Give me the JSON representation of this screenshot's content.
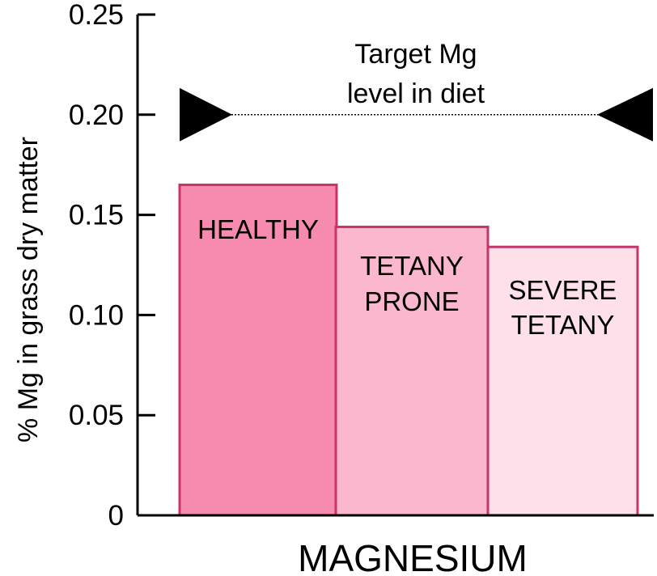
{
  "chart_data": {
    "type": "bar",
    "title": "",
    "xlabel": "MAGNESIUM",
    "ylabel": "% Mg in grass dry matter",
    "ylim": [
      0,
      0.25
    ],
    "yticks": [
      {
        "value": 0,
        "label": "0"
      },
      {
        "value": 0.05,
        "label": "0.05"
      },
      {
        "value": 0.1,
        "label": "0.10"
      },
      {
        "value": 0.15,
        "label": "0.15"
      },
      {
        "value": 0.2,
        "label": "0.20"
      },
      {
        "value": 0.25,
        "label": "0.25"
      }
    ],
    "grid": false,
    "categories": [
      {
        "lines": [
          "HEALTHY"
        ],
        "value": 0.165,
        "fill": "#f78aaf",
        "stroke": "#c8336b"
      },
      {
        "lines": [
          "TETANY",
          "PRONE"
        ],
        "value": 0.144,
        "fill": "#fbb7cd",
        "stroke": "#c8336b"
      },
      {
        "lines": [
          "SEVERE",
          "TETANY"
        ],
        "value": 0.134,
        "fill": "#fde0e9",
        "stroke": "#c8336b"
      }
    ],
    "target": {
      "value": 0.2,
      "lines": [
        "Target Mg",
        "level in diet"
      ]
    }
  }
}
